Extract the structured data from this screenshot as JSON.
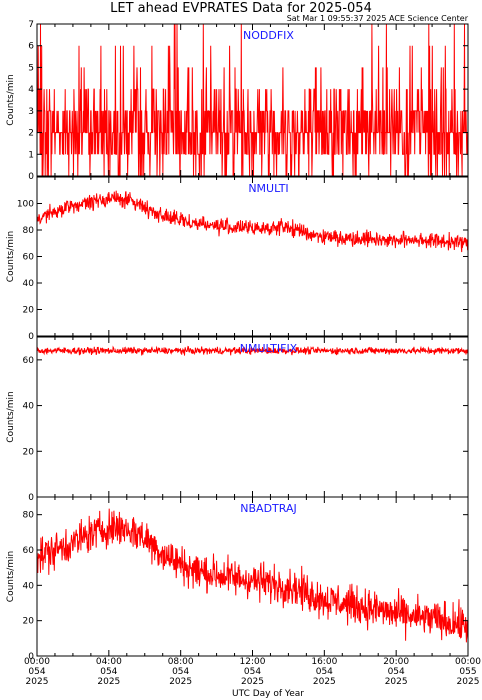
{
  "title": "LET ahead EVPRATES Data for 2025-054",
  "timestamp": "Sat Mar  1 09:55:37 2025 ACE Science Center",
  "xlabel": "UTC Day of Year",
  "colors": {
    "series": "#ff0000",
    "panel_title": "#1a1aff",
    "axes": "#000000"
  },
  "chart_data": [
    {
      "type": "line",
      "title": "NODDFIX",
      "ylabel": "Counts/min",
      "ylim": [
        0,
        7
      ],
      "yticks": [
        0,
        1,
        2,
        3,
        4,
        5,
        6,
        7
      ],
      "xlim": [
        "00:00",
        "24:00"
      ],
      "series": [
        {
          "name": "NODDFIX",
          "description": "noisy integer counts 0-7, mostly 0-3",
          "x": [
            "00:00",
            "02:00",
            "04:00",
            "06:00",
            "08:00",
            "10:00",
            "12:00",
            "14:00",
            "16:00",
            "18:00",
            "20:00",
            "22:00",
            "24:00"
          ],
          "values": [
            2,
            2,
            2,
            2,
            2,
            2,
            2,
            2,
            2,
            2,
            2,
            2,
            2
          ]
        }
      ]
    },
    {
      "type": "line",
      "title": "NMULTI",
      "ylabel": "Counts/min",
      "ylim": [
        0,
        120
      ],
      "yticks": [
        0,
        20,
        40,
        60,
        80,
        100
      ],
      "xlim": [
        "00:00",
        "24:00"
      ],
      "series": [
        {
          "name": "NMULTI",
          "x": [
            "00:00",
            "01:00",
            "02:00",
            "03:00",
            "04:00",
            "05:00",
            "06:00",
            "07:00",
            "08:00",
            "09:00",
            "10:00",
            "11:00",
            "12:00",
            "13:00",
            "14:00",
            "15:00",
            "16:00",
            "17:00",
            "18:00",
            "19:00",
            "20:00",
            "21:00",
            "22:00",
            "23:00",
            "24:00"
          ],
          "values": [
            89,
            93,
            98,
            101,
            104,
            103,
            97,
            91,
            87,
            85,
            83,
            82,
            81,
            82,
            82,
            78,
            75,
            74,
            74,
            73,
            72,
            73,
            72,
            71,
            70
          ]
        }
      ]
    },
    {
      "type": "line",
      "title": "NMULTIFIX",
      "ylabel": "Counts/min",
      "ylim": [
        0,
        70
      ],
      "yticks": [
        0,
        20,
        40,
        60
      ],
      "xlim": [
        "00:00",
        "24:00"
      ],
      "series": [
        {
          "name": "NMULTIFIX",
          "x": [
            "00:00",
            "04:00",
            "08:00",
            "12:00",
            "16:00",
            "20:00",
            "24:00"
          ],
          "values": [
            64,
            64,
            64,
            64,
            64,
            64,
            64
          ]
        }
      ]
    },
    {
      "type": "line",
      "title": "NBADTRAJ",
      "ylabel": "Counts/min",
      "ylim": [
        0,
        90
      ],
      "yticks": [
        0,
        20,
        40,
        60,
        80
      ],
      "xlim": [
        "00:00",
        "24:00"
      ],
      "series": [
        {
          "name": "NBADTRAJ",
          "x": [
            "00:00",
            "01:00",
            "02:00",
            "03:00",
            "04:00",
            "05:00",
            "06:00",
            "07:00",
            "08:00",
            "09:00",
            "10:00",
            "11:00",
            "12:00",
            "13:00",
            "14:00",
            "15:00",
            "16:00",
            "17:00",
            "18:00",
            "19:00",
            "20:00",
            "21:00",
            "22:00",
            "23:00",
            "24:00"
          ],
          "values": [
            56,
            60,
            64,
            69,
            73,
            72,
            67,
            58,
            52,
            48,
            46,
            44,
            43,
            41,
            40,
            36,
            32,
            30,
            28,
            26,
            24,
            22,
            21,
            19,
            17
          ]
        }
      ]
    }
  ],
  "xticks": [
    {
      "time": "00:00",
      "doy": "054",
      "year": "2025"
    },
    {
      "time": "04:00",
      "doy": "054",
      "year": "2025"
    },
    {
      "time": "08:00",
      "doy": "054",
      "year": "2025"
    },
    {
      "time": "12:00",
      "doy": "054",
      "year": "2025"
    },
    {
      "time": "16:00",
      "doy": "054",
      "year": "2025"
    },
    {
      "time": "20:00",
      "doy": "054",
      "year": "2025"
    },
    {
      "time": "00:00",
      "doy": "055",
      "year": "2025"
    }
  ]
}
